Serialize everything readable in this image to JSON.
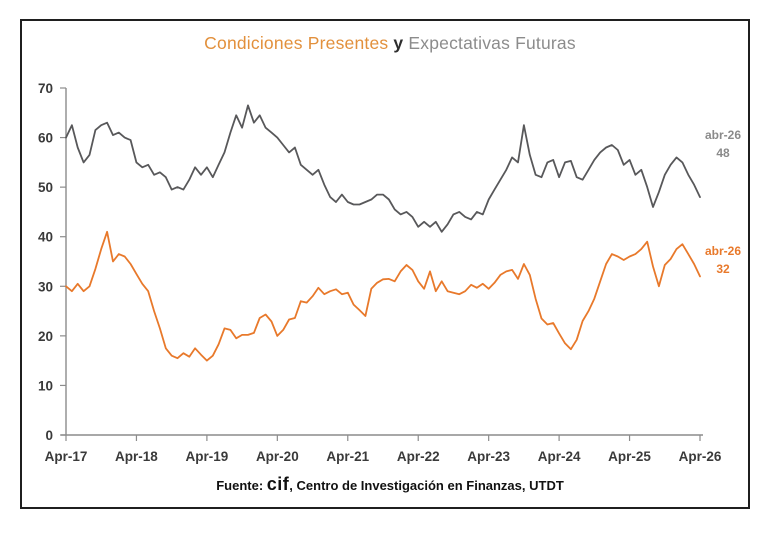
{
  "title": {
    "part_orange": "Condiciones Presentes",
    "part_connector": " y ",
    "part_gray": "Expectativas Futuras"
  },
  "annotations": {
    "gray": {
      "line1": "abr-26",
      "line2": "48"
    },
    "orange": {
      "line1": "abr-26",
      "line2": "32"
    }
  },
  "footer": {
    "prefix": "Fuente: ",
    "logo": "cif",
    "suffix": ", Centro de Investigación en Finanzas, UTDT"
  },
  "colors": {
    "title_orange": "#e2903c",
    "title_gray": "#8c8c8c",
    "axis": "#8c8c8c",
    "tick_text": "#3a3a3a",
    "frame_border": "#1f1f1f",
    "series_orange": "#e8792b",
    "series_gray": "#58585a"
  },
  "chart_data": {
    "type": "line",
    "title": "Condiciones Presentes y Expectativas Futuras",
    "xlabel": "",
    "ylabel": "",
    "ylim": [
      0,
      70
    ],
    "ytick_step": 10,
    "grid": false,
    "legend_position": "none",
    "x_tick_labels": [
      "Apr-17",
      "Apr-18",
      "Apr-19",
      "Apr-20",
      "Apr-21",
      "Apr-22",
      "Apr-23",
      "Apr-24",
      "Apr-25",
      "Apr-26"
    ],
    "x_tick_months": [
      0,
      12,
      24,
      36,
      48,
      60,
      72,
      84,
      96,
      108
    ],
    "x_frequency": "monthly",
    "series": [
      {
        "id": "expectativas-futuras",
        "name": "Expectativas Futuras",
        "color": "#58585a",
        "end_label": "abr-26 48",
        "values": [
          60,
          62.5,
          58,
          55,
          56.5,
          61.5,
          62.5,
          63,
          60.5,
          61,
          60,
          59.5,
          55,
          54,
          54.5,
          52.5,
          53,
          52,
          49.5,
          50,
          49.5,
          51.5,
          54,
          52.5,
          54,
          52,
          54.5,
          57,
          61,
          64.5,
          62,
          66.5,
          63,
          64.5,
          62,
          61,
          60,
          58.5,
          57,
          58,
          54.5,
          53.5,
          52.5,
          53.5,
          50.5,
          48,
          47,
          48.5,
          47,
          46.5,
          46.5,
          47,
          47.5,
          48.5,
          48.5,
          47.5,
          45.5,
          44.5,
          45,
          44,
          42,
          43,
          42,
          43,
          41,
          42.5,
          44.5,
          45,
          44,
          43.5,
          45,
          44.5,
          47.5,
          49.5,
          51.5,
          53.5,
          56,
          55,
          62.5,
          56.5,
          52.5,
          52,
          55,
          55.5,
          52,
          55,
          55.3,
          52,
          51.5,
          53.5,
          55.5,
          57,
          58,
          58.5,
          57.5,
          54.5,
          55.5,
          52.5,
          53.5,
          50,
          46,
          49,
          52.5,
          54.5,
          56,
          55,
          52.5,
          50.5,
          48
        ]
      },
      {
        "id": "condiciones-presentes",
        "name": "Condiciones Presentes",
        "color": "#e8792b",
        "end_label": "abr-26 32",
        "values": [
          30,
          29,
          30.5,
          29,
          30,
          33.5,
          37.5,
          41,
          35,
          36.5,
          36,
          34.5,
          32.5,
          30.5,
          29,
          25,
          21.5,
          17.5,
          16,
          15.5,
          16.5,
          15.8,
          17.5,
          16.2,
          15,
          16,
          18.3,
          21.5,
          21.2,
          19.5,
          20.2,
          20.2,
          20.6,
          23.6,
          24.3,
          22.9,
          20,
          21.2,
          23.3,
          23.6,
          27,
          26.7,
          28,
          29.7,
          28.4,
          29,
          29.4,
          28.4,
          28.7,
          26.3,
          25.2,
          24,
          29.5,
          30.7,
          31.4,
          31.5,
          31,
          33,
          34.3,
          33.3,
          31,
          29.5,
          33,
          29,
          31,
          29,
          28.7,
          28.4,
          29,
          30.3,
          29.7,
          30.5,
          29.5,
          30.7,
          32.3,
          33,
          33.3,
          31.5,
          34.5,
          32.3,
          27.5,
          23.5,
          22.3,
          22.6,
          20.5,
          18.5,
          17.3,
          19.2,
          23,
          25,
          27.5,
          31,
          34.5,
          36.5,
          36,
          35.3,
          36,
          36.5,
          37.5,
          39,
          34,
          30,
          34.3,
          35.5,
          37.5,
          38.5,
          36.5,
          34.5,
          32
        ]
      }
    ]
  }
}
